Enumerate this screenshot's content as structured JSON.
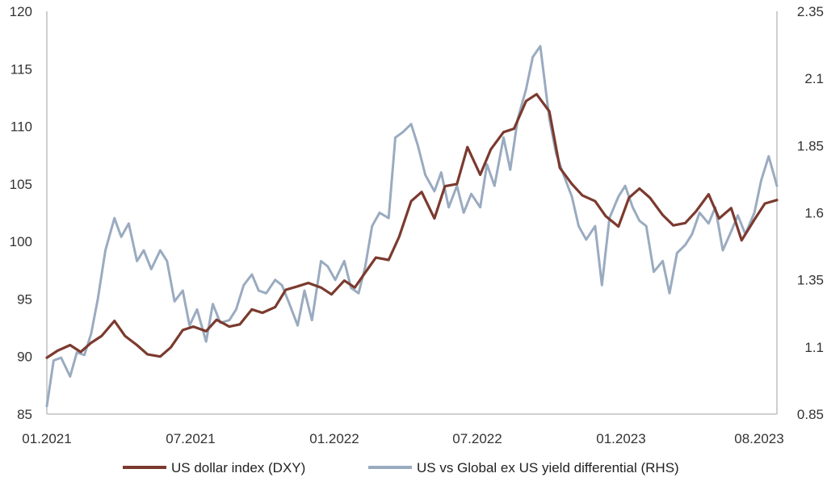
{
  "chart_data": {
    "type": "line",
    "title": "",
    "x_tick_labels": [
      "01.2021",
      "07.2021",
      "01.2022",
      "07.2022",
      "01.2023",
      "08.2023"
    ],
    "x_range": [
      "2021-01-01",
      "2023-08-31"
    ],
    "left_axis": {
      "ticks": [
        120,
        115,
        110,
        105,
        100,
        95,
        90,
        85
      ],
      "tick_labels": [
        "120",
        "115",
        "110",
        "105",
        "100",
        "95",
        "90",
        "85"
      ],
      "range": [
        85,
        120
      ]
    },
    "right_axis": {
      "ticks": [
        2.35,
        2.1,
        1.85,
        1.6,
        1.35,
        1.1,
        0.85
      ],
      "tick_labels": [
        "2.35",
        "2.1",
        "1.85",
        "1.6",
        "1.35",
        "1.1",
        "0.85"
      ],
      "range": [
        0.85,
        2.35
      ]
    },
    "grid": false,
    "legend_position": "bottom",
    "series": [
      {
        "name": "US dollar index (DXY)",
        "axis": "left",
        "color": "#7b3a2e",
        "points": [
          [
            "2021-01-01",
            89.9
          ],
          [
            "2021-01-15",
            90.5
          ],
          [
            "2021-02-01",
            91.0
          ],
          [
            "2021-02-15",
            90.4
          ],
          [
            "2021-03-01",
            91.2
          ],
          [
            "2021-03-15",
            91.8
          ],
          [
            "2021-04-01",
            93.1
          ],
          [
            "2021-04-15",
            91.8
          ],
          [
            "2021-05-01",
            91.0
          ],
          [
            "2021-05-15",
            90.2
          ],
          [
            "2021-06-01",
            90.0
          ],
          [
            "2021-06-15",
            90.8
          ],
          [
            "2021-07-01",
            92.3
          ],
          [
            "2021-07-15",
            92.6
          ],
          [
            "2021-08-01",
            92.2
          ],
          [
            "2021-08-15",
            93.2
          ],
          [
            "2021-09-01",
            92.6
          ],
          [
            "2021-09-15",
            92.8
          ],
          [
            "2021-10-01",
            94.1
          ],
          [
            "2021-10-15",
            93.8
          ],
          [
            "2021-11-01",
            94.3
          ],
          [
            "2021-11-15",
            95.8
          ],
          [
            "2021-12-01",
            96.1
          ],
          [
            "2021-12-15",
            96.4
          ],
          [
            "2022-01-01",
            96.0
          ],
          [
            "2022-01-15",
            95.4
          ],
          [
            "2022-02-01",
            96.6
          ],
          [
            "2022-02-15",
            96.0
          ],
          [
            "2022-03-01",
            97.3
          ],
          [
            "2022-03-15",
            98.6
          ],
          [
            "2022-04-01",
            98.4
          ],
          [
            "2022-04-15",
            100.4
          ],
          [
            "2022-05-01",
            103.5
          ],
          [
            "2022-05-15",
            104.3
          ],
          [
            "2022-06-01",
            102.0
          ],
          [
            "2022-06-15",
            104.8
          ],
          [
            "2022-07-01",
            105.0
          ],
          [
            "2022-07-15",
            108.2
          ],
          [
            "2022-08-01",
            105.8
          ],
          [
            "2022-08-15",
            108.0
          ],
          [
            "2022-09-01",
            109.5
          ],
          [
            "2022-09-15",
            109.8
          ],
          [
            "2022-10-01",
            112.2
          ],
          [
            "2022-10-15",
            112.8
          ],
          [
            "2022-11-01",
            111.3
          ],
          [
            "2022-11-15",
            106.4
          ],
          [
            "2022-12-01",
            105.0
          ],
          [
            "2022-12-15",
            104.0
          ],
          [
            "2023-01-01",
            103.5
          ],
          [
            "2023-01-15",
            102.2
          ],
          [
            "2023-02-01",
            101.3
          ],
          [
            "2023-02-15",
            103.8
          ],
          [
            "2023-03-01",
            104.6
          ],
          [
            "2023-03-15",
            103.8
          ],
          [
            "2023-04-01",
            102.3
          ],
          [
            "2023-04-15",
            101.4
          ],
          [
            "2023-05-01",
            101.6
          ],
          [
            "2023-05-15",
            102.6
          ],
          [
            "2023-06-01",
            104.1
          ],
          [
            "2023-06-15",
            102.0
          ],
          [
            "2023-07-01",
            102.9
          ],
          [
            "2023-07-15",
            100.1
          ],
          [
            "2023-08-01",
            101.9
          ],
          [
            "2023-08-15",
            103.3
          ],
          [
            "2023-08-31",
            103.6
          ]
        ]
      },
      {
        "name": "US vs Global ex US yield differential (RHS)",
        "axis": "right",
        "color": "#9aabc0",
        "points": [
          [
            "2021-01-01",
            0.88
          ],
          [
            "2021-01-10",
            1.05
          ],
          [
            "2021-01-20",
            1.06
          ],
          [
            "2021-02-01",
            0.99
          ],
          [
            "2021-02-10",
            1.08
          ],
          [
            "2021-02-20",
            1.07
          ],
          [
            "2021-03-01",
            1.15
          ],
          [
            "2021-03-10",
            1.28
          ],
          [
            "2021-03-20",
            1.46
          ],
          [
            "2021-04-01",
            1.58
          ],
          [
            "2021-04-10",
            1.51
          ],
          [
            "2021-04-20",
            1.56
          ],
          [
            "2021-05-01",
            1.42
          ],
          [
            "2021-05-10",
            1.46
          ],
          [
            "2021-05-20",
            1.39
          ],
          [
            "2021-06-01",
            1.46
          ],
          [
            "2021-06-10",
            1.42
          ],
          [
            "2021-06-20",
            1.27
          ],
          [
            "2021-07-01",
            1.31
          ],
          [
            "2021-07-10",
            1.18
          ],
          [
            "2021-07-20",
            1.24
          ],
          [
            "2021-08-01",
            1.12
          ],
          [
            "2021-08-10",
            1.26
          ],
          [
            "2021-08-20",
            1.19
          ],
          [
            "2021-09-01",
            1.2
          ],
          [
            "2021-09-10",
            1.24
          ],
          [
            "2021-09-20",
            1.33
          ],
          [
            "2021-10-01",
            1.37
          ],
          [
            "2021-10-10",
            1.31
          ],
          [
            "2021-10-20",
            1.3
          ],
          [
            "2021-11-01",
            1.35
          ],
          [
            "2021-11-10",
            1.33
          ],
          [
            "2021-11-20",
            1.26
          ],
          [
            "2021-12-01",
            1.18
          ],
          [
            "2021-12-10",
            1.31
          ],
          [
            "2021-12-20",
            1.2
          ],
          [
            "2022-01-01",
            1.42
          ],
          [
            "2022-01-10",
            1.4
          ],
          [
            "2022-01-20",
            1.35
          ],
          [
            "2022-02-01",
            1.42
          ],
          [
            "2022-02-10",
            1.32
          ],
          [
            "2022-02-20",
            1.3
          ],
          [
            "2022-03-01",
            1.4
          ],
          [
            "2022-03-10",
            1.55
          ],
          [
            "2022-03-20",
            1.6
          ],
          [
            "2022-04-01",
            1.58
          ],
          [
            "2022-04-10",
            1.88
          ],
          [
            "2022-04-20",
            1.9
          ],
          [
            "2022-05-01",
            1.93
          ],
          [
            "2022-05-10",
            1.85
          ],
          [
            "2022-05-20",
            1.74
          ],
          [
            "2022-06-01",
            1.68
          ],
          [
            "2022-06-10",
            1.75
          ],
          [
            "2022-06-20",
            1.62
          ],
          [
            "2022-07-01",
            1.7
          ],
          [
            "2022-07-10",
            1.6
          ],
          [
            "2022-07-20",
            1.67
          ],
          [
            "2022-08-01",
            1.62
          ],
          [
            "2022-08-10",
            1.78
          ],
          [
            "2022-08-20",
            1.7
          ],
          [
            "2022-09-01",
            1.88
          ],
          [
            "2022-09-10",
            1.76
          ],
          [
            "2022-09-20",
            1.95
          ],
          [
            "2022-10-01",
            2.06
          ],
          [
            "2022-10-10",
            2.18
          ],
          [
            "2022-10-20",
            2.22
          ],
          [
            "2022-11-01",
            1.95
          ],
          [
            "2022-11-10",
            1.82
          ],
          [
            "2022-11-20",
            1.74
          ],
          [
            "2022-12-01",
            1.66
          ],
          [
            "2022-12-10",
            1.55
          ],
          [
            "2022-12-20",
            1.5
          ],
          [
            "2023-01-01",
            1.55
          ],
          [
            "2023-01-10",
            1.33
          ],
          [
            "2023-01-20",
            1.58
          ],
          [
            "2023-02-01",
            1.66
          ],
          [
            "2023-02-10",
            1.7
          ],
          [
            "2023-02-20",
            1.62
          ],
          [
            "2023-03-01",
            1.57
          ],
          [
            "2023-03-10",
            1.55
          ],
          [
            "2023-03-20",
            1.38
          ],
          [
            "2023-04-01",
            1.42
          ],
          [
            "2023-04-10",
            1.3
          ],
          [
            "2023-04-20",
            1.45
          ],
          [
            "2023-05-01",
            1.48
          ],
          [
            "2023-05-10",
            1.52
          ],
          [
            "2023-05-20",
            1.6
          ],
          [
            "2023-06-01",
            1.56
          ],
          [
            "2023-06-10",
            1.62
          ],
          [
            "2023-06-20",
            1.46
          ],
          [
            "2023-07-01",
            1.53
          ],
          [
            "2023-07-10",
            1.59
          ],
          [
            "2023-07-20",
            1.52
          ],
          [
            "2023-08-01",
            1.6
          ],
          [
            "2023-08-10",
            1.72
          ],
          [
            "2023-08-20",
            1.81
          ],
          [
            "2023-08-31",
            1.7
          ]
        ]
      }
    ]
  }
}
